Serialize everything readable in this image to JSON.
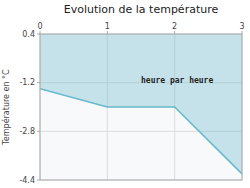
{
  "chart_data": {
    "type": "area",
    "title": "Evolution de la température",
    "ylabel": "Température en °C",
    "x": [
      0,
      1,
      2,
      3
    ],
    "values": [
      -1.4,
      -2.0,
      -2.0,
      -4.2
    ],
    "color": "#66b8cc",
    "xlim": [
      0,
      3
    ],
    "ylim": [
      -4.4,
      0.4
    ],
    "xticks": [
      0,
      1,
      2,
      3
    ],
    "yticks": [
      0.4,
      -1.2,
      -2.8,
      -4.4
    ],
    "grid": true,
    "annotations": [
      "heure par heure"
    ]
  }
}
